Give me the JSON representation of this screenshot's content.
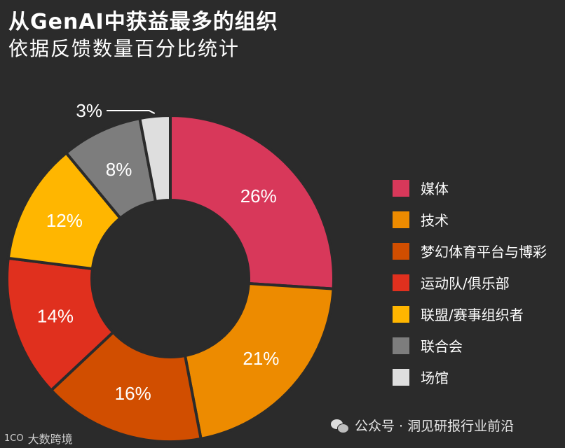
{
  "title": "从GenAI中获益最多的组织",
  "subtitle": "依据反馈数量百分比统计",
  "chart_data": {
    "type": "pie",
    "title": "从GenAI中获益最多的组织",
    "subtitle": "依据反馈数量百分比统计",
    "categories": [
      "媒体",
      "技术",
      "梦幻体育平台与博彩",
      "运动队/俱乐部",
      "联盟/赛事组织者",
      "联合会",
      "场馆"
    ],
    "values": [
      26,
      21,
      16,
      14,
      12,
      8,
      3
    ],
    "labels": [
      "26%",
      "21%",
      "16%",
      "14%",
      "12%",
      "8%",
      "3%"
    ],
    "colors": [
      "#d8385a",
      "#ed8b00",
      "#d14e00",
      "#e0301e",
      "#ffb600",
      "#7d7d7d",
      "#dedede"
    ],
    "legend_position": "right",
    "donut": true
  },
  "watermark": "公众号 · 洞见研报行业前沿",
  "brand": "大数跨境",
  "brand_logo": "1CO"
}
